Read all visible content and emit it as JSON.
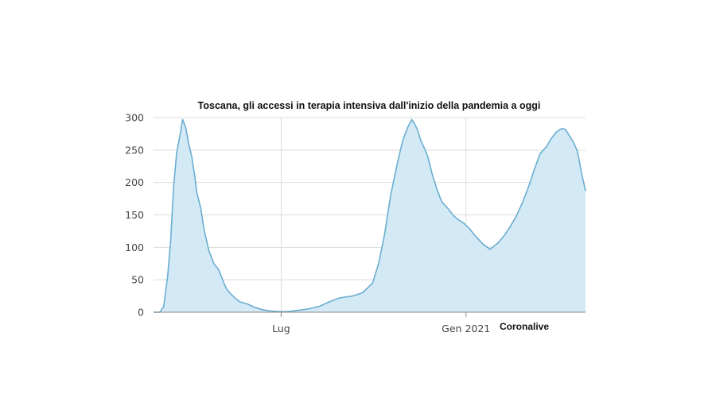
{
  "chart_data": {
    "type": "area",
    "title": "Toscana, gli accessi in terapia intensiva dall'inizio della pandemia a oggi",
    "source": "Coronalive",
    "xlabel": "",
    "ylabel": "",
    "ylim": [
      0,
      300
    ],
    "xlim": [
      "2020-02-25",
      "2021-04-30"
    ],
    "yticks": [
      0,
      50,
      100,
      150,
      200,
      250,
      300
    ],
    "xticks": [
      {
        "value": "2020-07-01",
        "label": "Lug"
      },
      {
        "value": "2021-01-01",
        "label": "Gen 2021"
      }
    ],
    "grid": true,
    "legend": "none",
    "colors": {
      "line": "#6aaed0",
      "fill": "#d3e9f5"
    },
    "series": [
      {
        "x": [
          "2020-02-25",
          "2020-03-02",
          "2020-03-06",
          "2020-03-10",
          "2020-03-13",
          "2020-03-16",
          "2020-03-19",
          "2020-03-22",
          "2020-03-25",
          "2020-03-28",
          "2020-03-31",
          "2020-04-03",
          "2020-04-06",
          "2020-04-08",
          "2020-04-12",
          "2020-04-15",
          "2020-04-20",
          "2020-04-25",
          "2020-04-30",
          "2020-05-05",
          "2020-05-08",
          "2020-05-12",
          "2020-05-16",
          "2020-05-21",
          "2020-05-28",
          "2020-06-04",
          "2020-06-12",
          "2020-06-20",
          "2020-06-28",
          "2020-07-08",
          "2020-07-18",
          "2020-07-28",
          "2020-08-08",
          "2020-08-18",
          "2020-08-28",
          "2020-09-10",
          "2020-09-20",
          "2020-09-30",
          "2020-10-06",
          "2020-10-12",
          "2020-10-18",
          "2020-10-24",
          "2020-10-30",
          "2020-11-04",
          "2020-11-08",
          "2020-11-11",
          "2020-11-14",
          "2020-11-17",
          "2020-11-20",
          "2020-11-24",
          "2020-11-28",
          "2020-12-03",
          "2020-12-08",
          "2020-12-14",
          "2020-12-20",
          "2020-12-25",
          "2020-12-30",
          "2021-01-05",
          "2021-01-10",
          "2021-01-18",
          "2021-01-25",
          "2021-02-02",
          "2021-02-08",
          "2021-02-14",
          "2021-02-20",
          "2021-02-26",
          "2021-03-04",
          "2021-03-10",
          "2021-03-16",
          "2021-03-22",
          "2021-03-27",
          "2021-04-01",
          "2021-04-06",
          "2021-04-10",
          "2021-04-14",
          "2021-04-18",
          "2021-04-22",
          "2021-04-26",
          "2021-04-30"
        ],
        "values": [
          0,
          0,
          8,
          55,
          110,
          195,
          245,
          270,
          297,
          285,
          260,
          240,
          210,
          185,
          160,
          130,
          95,
          75,
          65,
          45,
          35,
          28,
          22,
          16,
          13,
          8,
          4,
          2,
          1,
          1,
          3,
          5,
          9,
          16,
          22,
          25,
          30,
          45,
          75,
          120,
          180,
          225,
          265,
          285,
          297,
          290,
          280,
          265,
          255,
          240,
          215,
          190,
          170,
          160,
          148,
          142,
          137,
          128,
          118,
          105,
          97,
          107,
          118,
          132,
          148,
          168,
          192,
          220,
          245,
          255,
          268,
          278,
          283,
          282,
          272,
          262,
          248,
          215,
          187
        ]
      }
    ]
  }
}
